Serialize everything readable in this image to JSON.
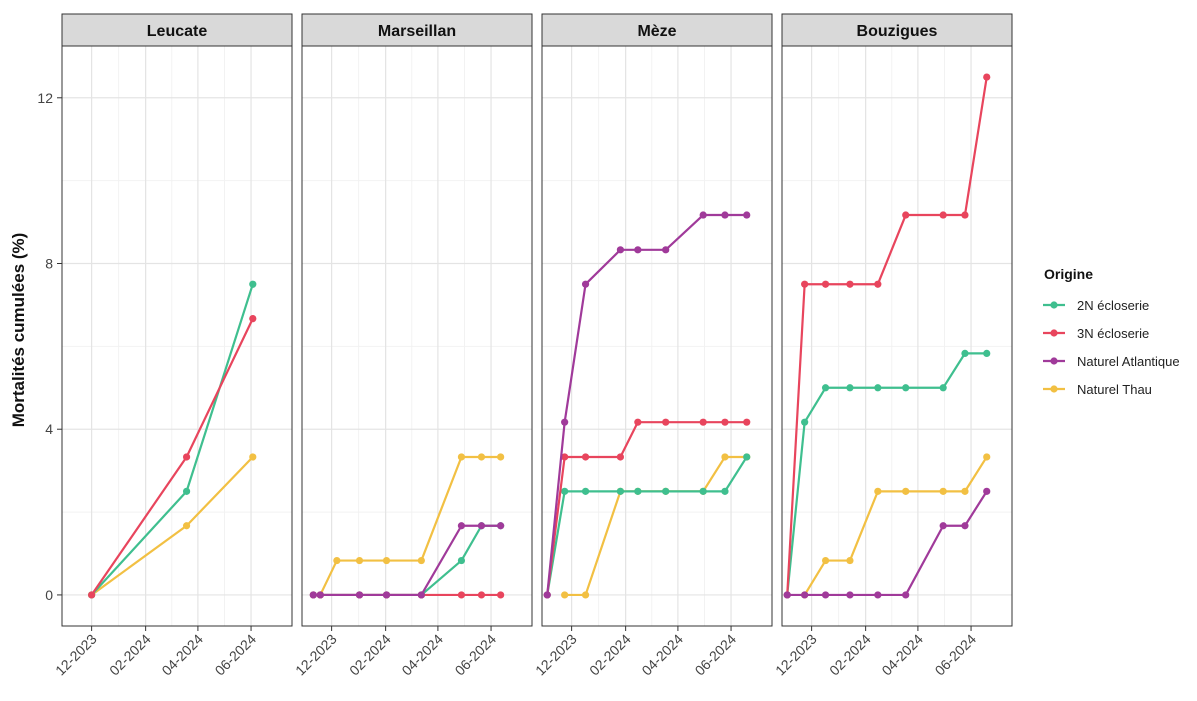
{
  "chart_data": {
    "type": "line",
    "title": "",
    "ylabel": "Mortalités cumulées (%)",
    "xlabel": "",
    "ylim": [
      -0.75,
      13.25
    ],
    "yticks": [
      0,
      4,
      8,
      12
    ],
    "ytick_labels": [
      "0",
      "4",
      "8",
      "12"
    ],
    "xlim": [
      "2023-10-28",
      "2024-07-18"
    ],
    "xticks": [
      "2023-12-01",
      "2024-02-01",
      "2024-04-01",
      "2024-06-01"
    ],
    "xtick_labels": [
      "12-2023",
      "02-2024",
      "04-2024",
      "06-2024"
    ],
    "grid": true,
    "legend": {
      "title": "Origine",
      "position": "right",
      "entries": [
        "2N écloserie",
        "3N écloserie",
        "Naturel Atlantique",
        "Naturel Thau"
      ]
    },
    "colors": {
      "2N écloserie": "#3fbf8f",
      "3N écloserie": "#e8455d",
      "Naturel Atlantique": "#a03a9a",
      "Naturel Thau": "#f2c043"
    },
    "facets": [
      {
        "name": "Leucate",
        "series": [
          {
            "name": "2N écloserie",
            "points": [
              [
                "2023-12-01",
                0
              ],
              [
                "2024-03-19",
                2.5
              ],
              [
                "2024-06-03",
                7.5
              ]
            ]
          },
          {
            "name": "3N écloserie",
            "points": [
              [
                "2023-12-01",
                0
              ],
              [
                "2024-03-19",
                3.33
              ],
              [
                "2024-06-03",
                6.67
              ]
            ]
          },
          {
            "name": "Naturel Thau",
            "points": [
              [
                "2023-12-01",
                0
              ],
              [
                "2024-03-19",
                1.67
              ],
              [
                "2024-06-03",
                3.33
              ]
            ]
          }
        ]
      },
      {
        "name": "Marseillan",
        "series": [
          {
            "name": "2N écloserie",
            "points": [
              [
                "2023-11-10",
                0
              ],
              [
                "2023-11-18",
                0
              ],
              [
                "2024-01-02",
                0
              ],
              [
                "2024-02-02",
                0
              ],
              [
                "2024-03-13",
                0
              ],
              [
                "2024-04-28",
                0.83
              ],
              [
                "2024-05-21",
                1.67
              ],
              [
                "2024-06-12",
                1.67
              ]
            ]
          },
          {
            "name": "3N écloserie",
            "points": [
              [
                "2023-11-10",
                0
              ],
              [
                "2023-11-18",
                0
              ],
              [
                "2024-01-02",
                0
              ],
              [
                "2024-02-02",
                0
              ],
              [
                "2024-03-13",
                0
              ],
              [
                "2024-04-28",
                0
              ],
              [
                "2024-05-21",
                0
              ],
              [
                "2024-06-12",
                0
              ]
            ]
          },
          {
            "name": "Naturel Atlantique",
            "points": [
              [
                "2023-11-10",
                0
              ],
              [
                "2023-11-18",
                0
              ],
              [
                "2024-01-02",
                0
              ],
              [
                "2024-02-02",
                0
              ],
              [
                "2024-03-13",
                0
              ],
              [
                "2024-04-28",
                1.67
              ],
              [
                "2024-05-21",
                1.67
              ],
              [
                "2024-06-12",
                1.67
              ]
            ]
          },
          {
            "name": "Naturel Thau",
            "points": [
              [
                "2023-11-18",
                0
              ],
              [
                "2023-12-07",
                0.83
              ],
              [
                "2024-01-02",
                0.83
              ],
              [
                "2024-02-02",
                0.83
              ],
              [
                "2024-03-13",
                0.83
              ],
              [
                "2024-04-28",
                3.33
              ],
              [
                "2024-05-21",
                3.33
              ],
              [
                "2024-06-12",
                3.33
              ]
            ]
          }
        ]
      },
      {
        "name": "Mèze",
        "series": [
          {
            "name": "2N écloserie",
            "points": [
              [
                "2023-11-03",
                0
              ],
              [
                "2023-11-23",
                2.5
              ],
              [
                "2023-12-17",
                2.5
              ],
              [
                "2024-01-26",
                2.5
              ],
              [
                "2024-02-15",
                2.5
              ],
              [
                "2024-03-18",
                2.5
              ],
              [
                "2024-04-30",
                2.5
              ],
              [
                "2024-05-25",
                2.5
              ],
              [
                "2024-06-19",
                3.33
              ]
            ]
          },
          {
            "name": "3N écloserie",
            "points": [
              [
                "2023-11-03",
                0
              ],
              [
                "2023-11-23",
                3.33
              ],
              [
                "2023-12-17",
                3.33
              ],
              [
                "2024-01-26",
                3.33
              ],
              [
                "2024-02-15",
                4.17
              ],
              [
                "2024-03-18",
                4.17
              ],
              [
                "2024-04-30",
                4.17
              ],
              [
                "2024-05-25",
                4.17
              ],
              [
                "2024-06-19",
                4.17
              ]
            ]
          },
          {
            "name": "Naturel Atlantique",
            "points": [
              [
                "2023-11-03",
                0
              ],
              [
                "2023-11-23",
                4.17
              ],
              [
                "2023-12-17",
                7.5
              ],
              [
                "2024-01-26",
                8.33
              ],
              [
                "2024-02-15",
                8.33
              ],
              [
                "2024-03-18",
                8.33
              ],
              [
                "2024-04-30",
                9.17
              ],
              [
                "2024-05-25",
                9.17
              ],
              [
                "2024-06-19",
                9.17
              ]
            ]
          },
          {
            "name": "Naturel Thau",
            "points": [
              [
                "2023-11-23",
                0
              ],
              [
                "2023-12-17",
                0
              ],
              [
                "2024-01-26",
                2.5
              ],
              [
                "2024-02-15",
                2.5
              ],
              [
                "2024-03-18",
                2.5
              ],
              [
                "2024-04-30",
                2.5
              ],
              [
                "2024-05-25",
                3.33
              ],
              [
                "2024-06-19",
                3.33
              ]
            ]
          }
        ]
      },
      {
        "name": "Bouzigues",
        "series": [
          {
            "name": "2N écloserie",
            "points": [
              [
                "2023-11-03",
                0
              ],
              [
                "2023-11-23",
                4.17
              ],
              [
                "2023-12-17",
                5
              ],
              [
                "2024-01-14",
                5
              ],
              [
                "2024-02-15",
                5
              ],
              [
                "2024-03-18",
                5
              ],
              [
                "2024-04-30",
                5
              ],
              [
                "2024-05-25",
                5.83
              ],
              [
                "2024-06-19",
                5.83
              ]
            ]
          },
          {
            "name": "3N écloserie",
            "points": [
              [
                "2023-11-03",
                0
              ],
              [
                "2023-11-23",
                7.5
              ],
              [
                "2023-12-17",
                7.5
              ],
              [
                "2024-01-14",
                7.5
              ],
              [
                "2024-02-15",
                7.5
              ],
              [
                "2024-03-18",
                9.17
              ],
              [
                "2024-04-30",
                9.17
              ],
              [
                "2024-05-25",
                9.17
              ],
              [
                "2024-06-19",
                12.5
              ]
            ]
          },
          {
            "name": "Naturel Atlantique",
            "points": [
              [
                "2023-11-03",
                0
              ],
              [
                "2023-11-23",
                0
              ],
              [
                "2023-12-17",
                0
              ],
              [
                "2024-01-14",
                0
              ],
              [
                "2024-02-15",
                0
              ],
              [
                "2024-03-18",
                0
              ],
              [
                "2024-04-30",
                1.67
              ],
              [
                "2024-05-25",
                1.67
              ],
              [
                "2024-06-19",
                2.5
              ]
            ]
          },
          {
            "name": "Naturel Thau",
            "points": [
              [
                "2023-11-23",
                0
              ],
              [
                "2023-12-17",
                0.83
              ],
              [
                "2024-01-14",
                0.83
              ],
              [
                "2024-02-15",
                2.5
              ],
              [
                "2024-03-18",
                2.5
              ],
              [
                "2024-04-30",
                2.5
              ],
              [
                "2024-05-25",
                2.5
              ],
              [
                "2024-06-19",
                3.33
              ]
            ]
          }
        ]
      }
    ]
  }
}
